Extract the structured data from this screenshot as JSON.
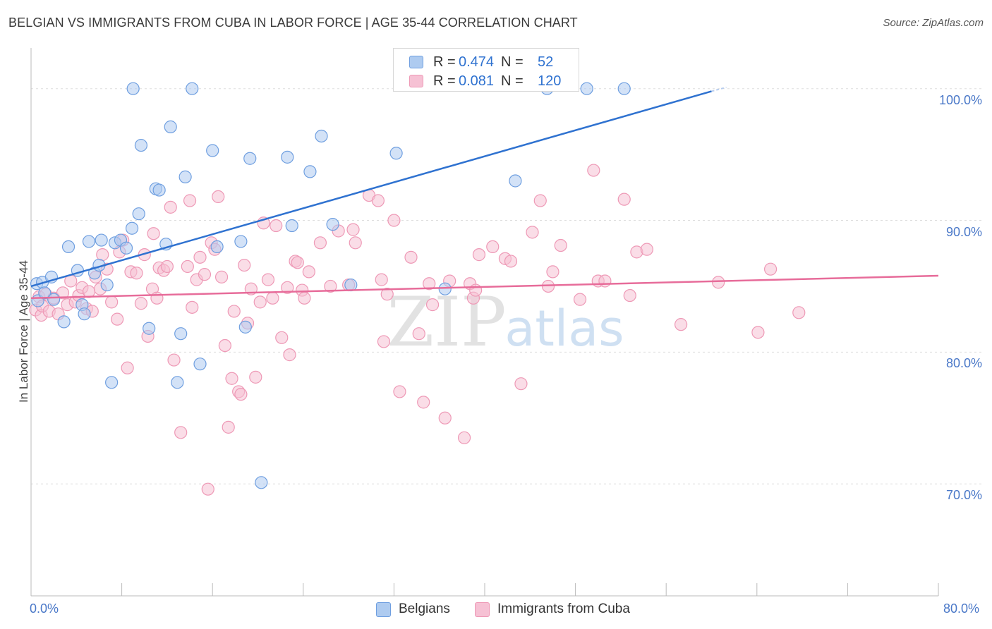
{
  "title": "BELGIAN VS IMMIGRANTS FROM CUBA IN LABOR FORCE | AGE 35-44 CORRELATION CHART",
  "source": "Source: ZipAtlas.com",
  "watermark": {
    "zip": "ZIP",
    "atlas": "atlas"
  },
  "legend_top": {
    "rows": [
      {
        "r_label": "R =",
        "r_value": "0.474",
        "n_label": "N =",
        "n_value": "52"
      },
      {
        "r_label": "R =",
        "r_value": "0.081",
        "n_label": "N =",
        "n_value": "120"
      }
    ]
  },
  "legend_bottom": {
    "items": [
      {
        "label": "Belgians"
      },
      {
        "label": "Immigrants from Cuba"
      }
    ]
  },
  "colors": {
    "belgians_fill": "#aecbf0",
    "belgians_stroke": "#6f9fe0",
    "belgians_line": "#2f72d0",
    "cuba_fill": "#f6c1d4",
    "cuba_stroke": "#ee99b6",
    "cuba_line": "#e76c9a",
    "tick_text": "#4a78c8",
    "grid": "#dddddd"
  },
  "chart_data": {
    "type": "scatter",
    "title": "BELGIAN VS IMMIGRANTS FROM CUBA IN LABOR FORCE | AGE 35-44 CORRELATION CHART",
    "xlabel": "",
    "ylabel": "In Labor Force | Age 35-44",
    "xlim": [
      0,
      80
    ],
    "ylim": [
      61.5,
      102.5
    ],
    "x_tick_labels": [
      "0.0%",
      "80.0%"
    ],
    "y_tick_labels": [
      "100.0%",
      "90.0%",
      "80.0%",
      "70.0%"
    ],
    "y_ticks": [
      100,
      90,
      80,
      70
    ],
    "grid": true,
    "legend_placement": "top-center and bottom",
    "series": [
      {
        "name": "Belgians",
        "R": 0.474,
        "N": 52,
        "trend": {
          "x": [
            0.0,
            60.0
          ],
          "y": [
            85.0,
            99.8
          ]
        },
        "points": [
          [
            0.5,
            85.2
          ],
          [
            0.6,
            83.9
          ],
          [
            1.0,
            85.3
          ],
          [
            1.2,
            84.5
          ],
          [
            1.8,
            85.7
          ],
          [
            2.0,
            84.0
          ],
          [
            2.9,
            82.3
          ],
          [
            3.3,
            88.0
          ],
          [
            4.1,
            86.2
          ],
          [
            4.5,
            83.6
          ],
          [
            4.7,
            82.9
          ],
          [
            5.1,
            88.4
          ],
          [
            5.6,
            86.0
          ],
          [
            6.0,
            86.6
          ],
          [
            6.2,
            88.5
          ],
          [
            6.7,
            85.1
          ],
          [
            7.1,
            77.7
          ],
          [
            7.4,
            88.3
          ],
          [
            7.9,
            88.5
          ],
          [
            8.4,
            87.9
          ],
          [
            8.9,
            89.4
          ],
          [
            9.0,
            100.0
          ],
          [
            9.5,
            90.5
          ],
          [
            9.7,
            95.7
          ],
          [
            10.4,
            81.8
          ],
          [
            11.0,
            92.4
          ],
          [
            11.3,
            92.3
          ],
          [
            11.9,
            88.2
          ],
          [
            12.3,
            97.1
          ],
          [
            12.9,
            77.7
          ],
          [
            13.2,
            81.4
          ],
          [
            13.6,
            93.3
          ],
          [
            14.2,
            100.0
          ],
          [
            14.9,
            79.1
          ],
          [
            16.0,
            95.3
          ],
          [
            16.4,
            88.0
          ],
          [
            18.5,
            88.4
          ],
          [
            18.9,
            81.9
          ],
          [
            19.3,
            94.7
          ],
          [
            20.3,
            70.1
          ],
          [
            22.6,
            94.8
          ],
          [
            23.0,
            89.6
          ],
          [
            24.6,
            93.7
          ],
          [
            25.6,
            96.4
          ],
          [
            26.6,
            89.7
          ],
          [
            28.2,
            85.1
          ],
          [
            32.2,
            95.1
          ],
          [
            36.5,
            84.8
          ],
          [
            42.7,
            93.0
          ],
          [
            45.5,
            100.0
          ],
          [
            49.0,
            100.0
          ],
          [
            52.3,
            100.0
          ]
        ]
      },
      {
        "name": "Immigrants from Cuba",
        "R": 0.081,
        "N": 120,
        "trend": {
          "x": [
            0.0,
            80.0
          ],
          "y": [
            84.1,
            85.8
          ]
        },
        "points": [
          [
            0.4,
            83.2
          ],
          [
            0.7,
            84.2
          ],
          [
            0.9,
            82.8
          ],
          [
            1.0,
            83.5
          ],
          [
            1.3,
            84.4
          ],
          [
            1.6,
            83.1
          ],
          [
            2.0,
            84.1
          ],
          [
            2.4,
            82.9
          ],
          [
            2.8,
            84.5
          ],
          [
            3.2,
            83.6
          ],
          [
            3.5,
            85.4
          ],
          [
            3.9,
            83.8
          ],
          [
            4.2,
            84.3
          ],
          [
            4.5,
            84.9
          ],
          [
            4.9,
            83.3
          ],
          [
            5.1,
            84.6
          ],
          [
            5.4,
            83.1
          ],
          [
            5.7,
            85.7
          ],
          [
            6.1,
            84.8
          ],
          [
            6.3,
            87.4
          ],
          [
            6.7,
            86.3
          ],
          [
            7.1,
            83.8
          ],
          [
            7.6,
            82.5
          ],
          [
            7.8,
            87.6
          ],
          [
            8.1,
            88.5
          ],
          [
            8.5,
            78.8
          ],
          [
            8.8,
            86.1
          ],
          [
            9.3,
            86.0
          ],
          [
            9.7,
            83.7
          ],
          [
            10.0,
            87.4
          ],
          [
            10.3,
            81.2
          ],
          [
            10.7,
            84.8
          ],
          [
            10.8,
            89.0
          ],
          [
            11.1,
            84.1
          ],
          [
            11.3,
            86.4
          ],
          [
            11.7,
            86.2
          ],
          [
            12.0,
            86.5
          ],
          [
            12.3,
            91.0
          ],
          [
            12.6,
            79.4
          ],
          [
            13.2,
            73.9
          ],
          [
            13.8,
            86.5
          ],
          [
            14.0,
            91.5
          ],
          [
            14.2,
            83.4
          ],
          [
            14.6,
            85.5
          ],
          [
            14.9,
            87.2
          ],
          [
            15.3,
            85.9
          ],
          [
            15.6,
            69.6
          ],
          [
            15.9,
            88.3
          ],
          [
            16.2,
            87.8
          ],
          [
            16.5,
            91.8
          ],
          [
            16.8,
            85.7
          ],
          [
            17.1,
            80.5
          ],
          [
            17.4,
            74.3
          ],
          [
            17.7,
            78.0
          ],
          [
            17.9,
            83.1
          ],
          [
            18.3,
            77.0
          ],
          [
            18.5,
            76.8
          ],
          [
            18.8,
            86.6
          ],
          [
            19.1,
            82.2
          ],
          [
            19.4,
            84.8
          ],
          [
            19.8,
            78.1
          ],
          [
            20.2,
            83.8
          ],
          [
            20.5,
            89.8
          ],
          [
            20.9,
            85.5
          ],
          [
            21.3,
            84.1
          ],
          [
            21.6,
            89.6
          ],
          [
            22.1,
            81.1
          ],
          [
            22.6,
            84.9
          ],
          [
            22.8,
            79.8
          ],
          [
            23.3,
            86.9
          ],
          [
            23.5,
            86.8
          ],
          [
            23.9,
            84.7
          ],
          [
            24.1,
            84.1
          ],
          [
            24.5,
            86.1
          ],
          [
            25.5,
            88.3
          ],
          [
            26.4,
            85.0
          ],
          [
            27.1,
            89.2
          ],
          [
            28.0,
            85.1
          ],
          [
            28.4,
            89.3
          ],
          [
            28.6,
            88.3
          ],
          [
            29.8,
            91.9
          ],
          [
            30.6,
            91.5
          ],
          [
            30.9,
            85.5
          ],
          [
            31.1,
            80.8
          ],
          [
            31.4,
            84.4
          ],
          [
            32.0,
            90.0
          ],
          [
            32.5,
            77.0
          ],
          [
            33.5,
            87.2
          ],
          [
            34.2,
            81.4
          ],
          [
            34.6,
            76.2
          ],
          [
            35.1,
            85.2
          ],
          [
            35.4,
            83.6
          ],
          [
            36.5,
            75.0
          ],
          [
            36.9,
            85.4
          ],
          [
            38.2,
            73.5
          ],
          [
            38.7,
            85.2
          ],
          [
            39.0,
            84.1
          ],
          [
            39.2,
            84.7
          ],
          [
            39.5,
            87.4
          ],
          [
            40.7,
            88.0
          ],
          [
            41.8,
            87.1
          ],
          [
            42.3,
            86.9
          ],
          [
            43.2,
            77.6
          ],
          [
            44.2,
            89.1
          ],
          [
            44.9,
            91.5
          ],
          [
            45.6,
            85.0
          ],
          [
            46.0,
            86.1
          ],
          [
            46.7,
            88.1
          ],
          [
            48.4,
            84.0
          ],
          [
            49.6,
            93.8
          ],
          [
            50.0,
            85.4
          ],
          [
            50.6,
            85.4
          ],
          [
            52.3,
            91.6
          ],
          [
            52.8,
            84.3
          ],
          [
            53.4,
            87.6
          ],
          [
            54.3,
            87.8
          ],
          [
            57.3,
            82.1
          ],
          [
            60.6,
            85.3
          ],
          [
            64.1,
            81.5
          ],
          [
            65.2,
            86.3
          ],
          [
            67.7,
            83.0
          ]
        ]
      }
    ]
  }
}
